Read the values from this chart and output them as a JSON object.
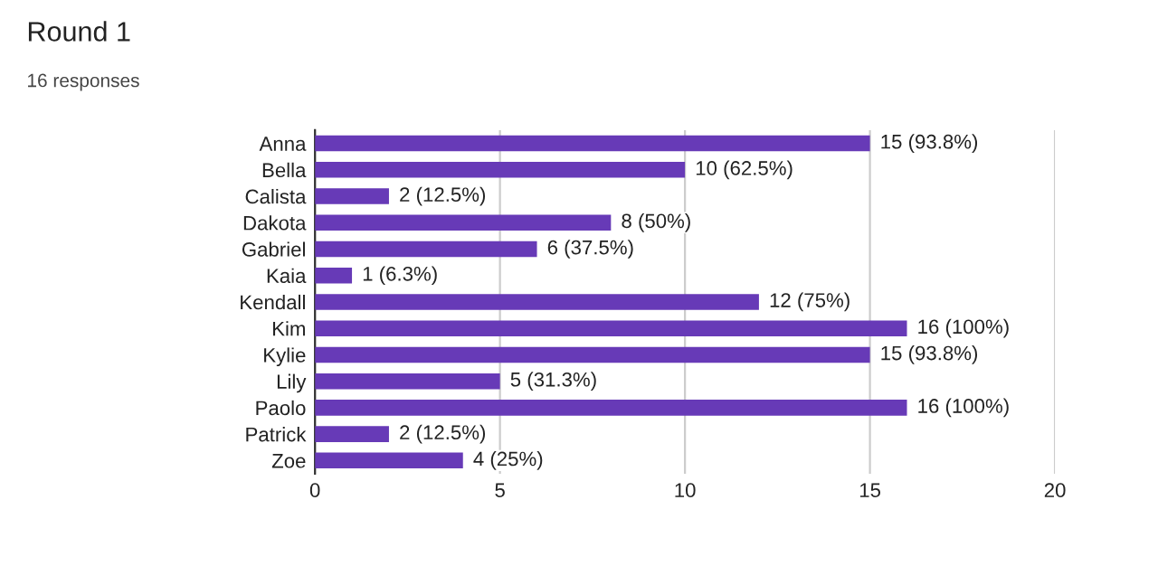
{
  "chart_data": {
    "type": "bar",
    "orientation": "horizontal",
    "title": "Round 1",
    "subtitle": "16 responses",
    "categories": [
      "Anna",
      "Bella",
      "Calista",
      "Dakota",
      "Gabriel",
      "Kaia",
      "Kendall",
      "Kim",
      "Kylie",
      "Lily",
      "Paolo",
      "Patrick",
      "Zoe"
    ],
    "values": [
      15,
      10,
      2,
      8,
      6,
      1,
      12,
      16,
      15,
      5,
      16,
      2,
      4
    ],
    "value_labels": [
      "15 (93.8%)",
      "10 (62.5%)",
      "2 (12.5%)",
      "8 (50%)",
      "6 (37.5%)",
      "1 (6.3%)",
      "12 (75%)",
      "16 (100%)",
      "15 (93.8%)",
      "5 (31.3%)",
      "16 (100%)",
      "2 (12.5%)",
      "4 (25%)"
    ],
    "color": "#673ab7",
    "xlim": [
      0,
      20
    ],
    "xticks": [
      0,
      5,
      10,
      15,
      20
    ],
    "grid": "x"
  }
}
